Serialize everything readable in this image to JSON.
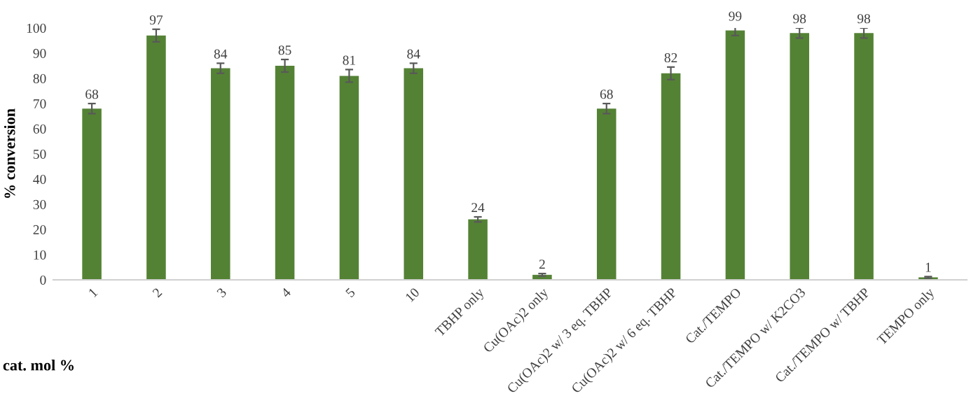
{
  "chart_data": {
    "type": "bar",
    "xlabel": "cat. mol %",
    "ylabel": "% conversion",
    "categories": [
      "1",
      "2",
      "3",
      "4",
      "5",
      "10",
      "TBHP only",
      "Cu(OAc)2 only",
      "Cu(OAc)2 w/ 3 eq. TBHP",
      "Cu(OAc)2 w/ 6 eq. TBHP",
      "Cat./TEMPO",
      "Cat./TEMPO w/ K2CO3",
      "Cat./TEMPO w/ TBHP",
      "TEMPO only"
    ],
    "values": [
      68,
      97,
      84,
      85,
      81,
      84,
      24,
      2,
      68,
      82,
      99,
      98,
      98,
      1
    ],
    "errors": [
      2,
      2.5,
      2,
      2.5,
      2.5,
      2,
      1,
      0.5,
      2,
      2.5,
      2,
      2,
      2,
      0.3
    ],
    "color": "#548235",
    "data_labels": true,
    "grid": false,
    "legend": false,
    "ylim": [
      0,
      100
    ],
    "yticks": [
      0,
      10,
      20,
      30,
      40,
      50,
      60,
      70,
      80,
      90,
      100
    ]
  }
}
